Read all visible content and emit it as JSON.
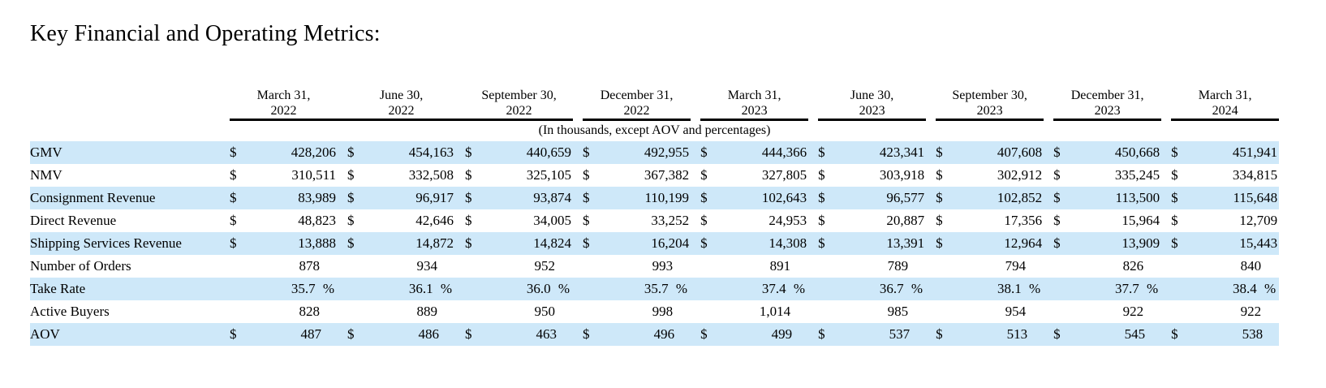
{
  "page": {
    "title": "Key Financial and Operating Metrics:"
  },
  "table": {
    "currency_symbol": "$",
    "note": "(In thousands, except AOV and percentages)",
    "columns": [
      {
        "line1": "March 31,",
        "line2": "2022"
      },
      {
        "line1": "June 30,",
        "line2": "2022"
      },
      {
        "line1": "September 30,",
        "line2": "2022"
      },
      {
        "line1": "December 31,",
        "line2": "2022"
      },
      {
        "line1": "March 31,",
        "line2": "2023"
      },
      {
        "line1": "June 30,",
        "line2": "2023"
      },
      {
        "line1": "September 30,",
        "line2": "2023"
      },
      {
        "line1": "December 31,",
        "line2": "2023"
      },
      {
        "line1": "March 31,",
        "line2": "2024"
      }
    ],
    "rows": [
      {
        "label": "GMV",
        "dollar": true,
        "style": "cur",
        "values": [
          "428,206",
          "454,163",
          "440,659",
          "492,955",
          "444,366",
          "423,341",
          "407,608",
          "450,668",
          "451,941"
        ]
      },
      {
        "label": "NMV",
        "dollar": true,
        "style": "cur",
        "values": [
          "310,511",
          "332,508",
          "325,105",
          "367,382",
          "327,805",
          "303,918",
          "302,912",
          "335,245",
          "334,815"
        ]
      },
      {
        "label": "Consignment Revenue",
        "dollar": true,
        "style": "cur",
        "values": [
          "83,989",
          "96,917",
          "93,874",
          "110,199",
          "102,643",
          "96,577",
          "102,852",
          "113,500",
          "115,648"
        ]
      },
      {
        "label": "Direct Revenue",
        "dollar": true,
        "style": "cur",
        "values": [
          "48,823",
          "42,646",
          "34,005",
          "33,252",
          "24,953",
          "20,887",
          "17,356",
          "15,964",
          "12,709"
        ]
      },
      {
        "label": "Shipping Services Revenue",
        "dollar": true,
        "style": "cur",
        "values": [
          "13,888",
          "14,872",
          "14,824",
          "16,204",
          "14,308",
          "13,391",
          "12,964",
          "13,909",
          "15,443"
        ]
      },
      {
        "label": "Number of Orders",
        "dollar": false,
        "style": "num",
        "values": [
          "878",
          "934",
          "952",
          "993",
          "891",
          "789",
          "794",
          "826",
          "840"
        ]
      },
      {
        "label": "Take Rate",
        "dollar": false,
        "style": "pct",
        "values": [
          "35.7 %",
          "36.1 %",
          "36.0 %",
          "35.7 %",
          "37.4 %",
          "36.7 %",
          "38.1 %",
          "37.7 %",
          "38.4 %"
        ]
      },
      {
        "label": "Active Buyers",
        "dollar": false,
        "style": "num",
        "values": [
          "828",
          "889",
          "950",
          "998",
          "1,014",
          "985",
          "954",
          "922",
          "922"
        ]
      },
      {
        "label": "AOV",
        "dollar": true,
        "style": "aov",
        "values": [
          "487",
          "486",
          "463",
          "496",
          "499",
          "537",
          "513",
          "545",
          "538"
        ]
      }
    ]
  },
  "colors": {
    "row_highlight": "#cee8f9",
    "rule": "#000000",
    "text": "#000000",
    "background": "#ffffff"
  }
}
